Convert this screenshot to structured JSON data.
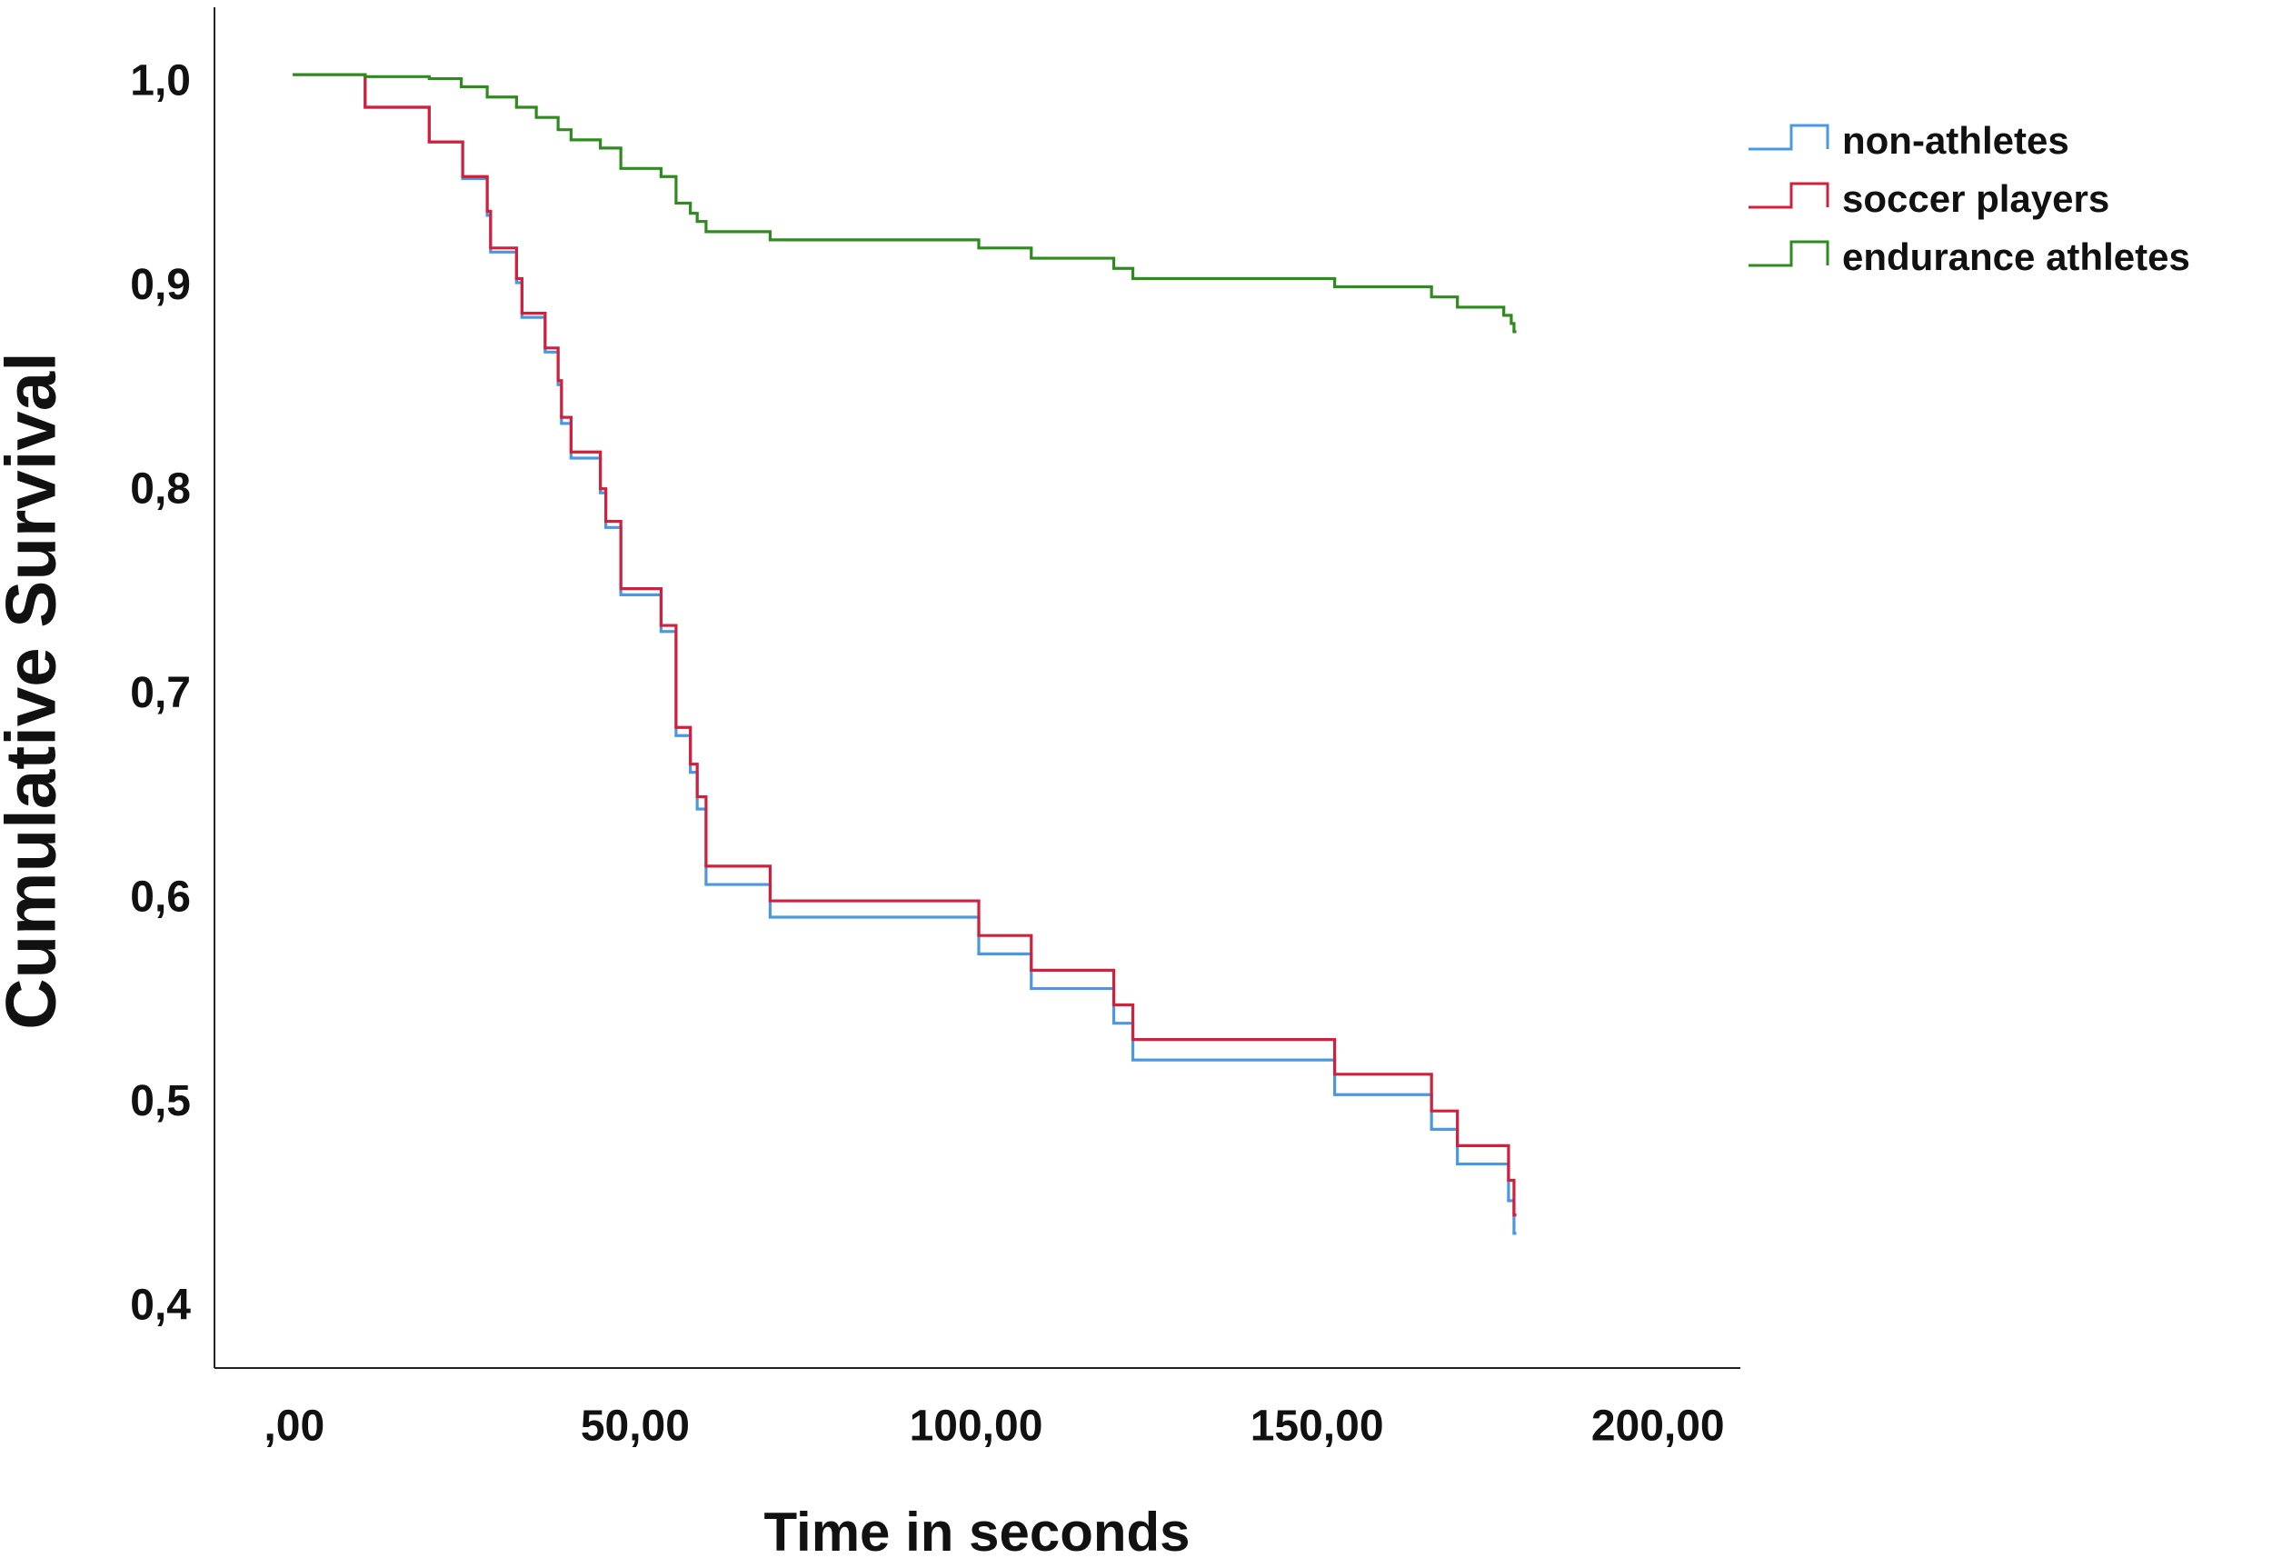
{
  "chart_data": {
    "type": "step",
    "xlabel": "Time in seconds",
    "ylabel": "Cumulative Survival",
    "xlim": [
      -11.7,
      212.1
    ],
    "ylim": [
      0.366,
      1.033
    ],
    "xticks": [
      {
        "value": 0,
        "label": ",00"
      },
      {
        "value": 50,
        "label": "50,00"
      },
      {
        "value": 100,
        "label": "100,00"
      },
      {
        "value": 150,
        "label": "150,00"
      },
      {
        "value": 200,
        "label": "200,00"
      }
    ],
    "yticks": [
      {
        "value": 0.4,
        "label": "0,4"
      },
      {
        "value": 0.5,
        "label": "0,5"
      },
      {
        "value": 0.6,
        "label": "0,6"
      },
      {
        "value": 0.7,
        "label": "0,7"
      },
      {
        "value": 0.8,
        "label": "0,8"
      },
      {
        "value": 0.9,
        "label": "0,9"
      },
      {
        "value": 1.0,
        "label": "1,0"
      }
    ],
    "grid": false,
    "legend_position": "right",
    "series": [
      {
        "name": "non-athletes",
        "color": "#4a98e0",
        "x": [
          0,
          10.4,
          19.8,
          24.7,
          28.3,
          28.8,
          32.6,
          33.4,
          36.8,
          38.7,
          39.2,
          40.6,
          44.9,
          45.7,
          47.9,
          53.8,
          56.0,
          58.1,
          59.1,
          60.4,
          69.8,
          100.4,
          108.1,
          120.2,
          123.0,
          152.6,
          166.8,
          170.6,
          178.1,
          178.9
        ],
        "values": [
          1.0,
          0.984,
          0.967,
          0.949,
          0.931,
          0.913,
          0.898,
          0.881,
          0.864,
          0.848,
          0.829,
          0.812,
          0.795,
          0.778,
          0.745,
          0.727,
          0.676,
          0.658,
          0.64,
          0.603,
          0.587,
          0.569,
          0.552,
          0.535,
          0.517,
          0.5,
          0.483,
          0.466,
          0.448,
          0.432
        ]
      },
      {
        "name": "soccer players",
        "color": "#d0203c",
        "x": [
          0,
          10.4,
          19.8,
          24.7,
          28.3,
          28.8,
          32.6,
          33.4,
          36.8,
          38.7,
          39.2,
          40.6,
          44.9,
          45.7,
          47.9,
          53.8,
          56.0,
          58.1,
          59.1,
          60.4,
          69.8,
          100.4,
          108.1,
          120.2,
          123.0,
          152.6,
          166.8,
          170.6,
          178.1,
          178.9
        ],
        "values": [
          1.0,
          0.984,
          0.967,
          0.95,
          0.933,
          0.915,
          0.9,
          0.883,
          0.866,
          0.85,
          0.832,
          0.815,
          0.797,
          0.781,
          0.748,
          0.73,
          0.68,
          0.662,
          0.646,
          0.612,
          0.595,
          0.578,
          0.561,
          0.544,
          0.527,
          0.51,
          0.492,
          0.475,
          0.458,
          0.441
        ]
      },
      {
        "name": "endurance athletes",
        "color": "#2e8b1e",
        "x": [
          0,
          10.4,
          19.8,
          24.5,
          28.3,
          32.6,
          35.5,
          38.7,
          40.6,
          44.9,
          47.9,
          53.8,
          56.0,
          58.1,
          59.1,
          60.4,
          69.8,
          100.4,
          108.1,
          120.2,
          123.0,
          152.6,
          166.8,
          170.6,
          177.4,
          178.5,
          178.9
        ],
        "values": [
          1.0,
          0.999,
          0.998,
          0.994,
          0.989,
          0.984,
          0.979,
          0.973,
          0.968,
          0.964,
          0.954,
          0.95,
          0.937,
          0.932,
          0.928,
          0.923,
          0.919,
          0.915,
          0.91,
          0.905,
          0.9,
          0.896,
          0.891,
          0.886,
          0.882,
          0.878,
          0.874
        ]
      }
    ]
  }
}
